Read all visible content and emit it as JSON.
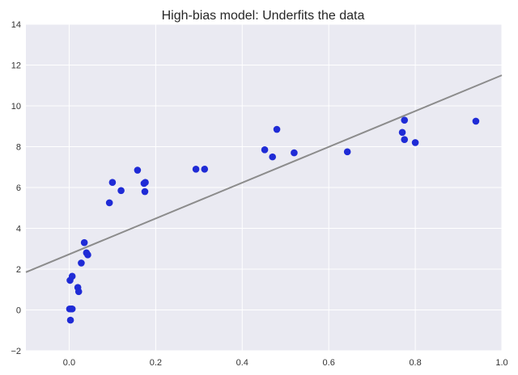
{
  "chart_data": {
    "type": "scatter",
    "title": "High-bias model: Underfits the data",
    "xlabel": "",
    "ylabel": "",
    "xlim": [
      -0.1,
      1.0
    ],
    "ylim": [
      -2,
      14
    ],
    "x_ticks": [
      "0.0",
      "0.2",
      "0.4",
      "0.6",
      "0.8",
      "1.0"
    ],
    "y_ticks": [
      "−2",
      "0",
      "2",
      "4",
      "6",
      "8",
      "10",
      "12",
      "14"
    ],
    "grid": true,
    "colors": {
      "background": "#EAEAF2",
      "grid": "#FFFFFF",
      "points": "#1F2BD6",
      "fit_line": "#8C8C8C"
    },
    "series": [
      {
        "type": "scatter",
        "x": [
          0.001,
          0.003,
          0.005,
          0.007,
          0.002,
          0.007,
          0.02,
          0.022,
          0.028,
          0.035,
          0.04,
          0.043,
          0.093,
          0.1,
          0.12,
          0.158,
          0.173,
          0.175,
          0.176,
          0.293,
          0.313,
          0.452,
          0.47,
          0.48,
          0.52,
          0.643,
          0.77,
          0.775,
          0.775,
          0.8,
          0.94
        ],
        "y": [
          0.05,
          -0.5,
          0.05,
          0.05,
          1.45,
          1.65,
          1.1,
          0.9,
          2.3,
          3.3,
          2.8,
          2.7,
          5.25,
          6.25,
          5.85,
          6.85,
          6.2,
          5.8,
          6.25,
          6.9,
          6.9,
          7.85,
          7.5,
          8.85,
          7.7,
          7.75,
          8.7,
          9.3,
          8.35,
          8.2,
          9.25
        ]
      },
      {
        "type": "line",
        "x": [
          -0.1,
          1.0
        ],
        "y": [
          1.85,
          11.5
        ]
      }
    ]
  }
}
